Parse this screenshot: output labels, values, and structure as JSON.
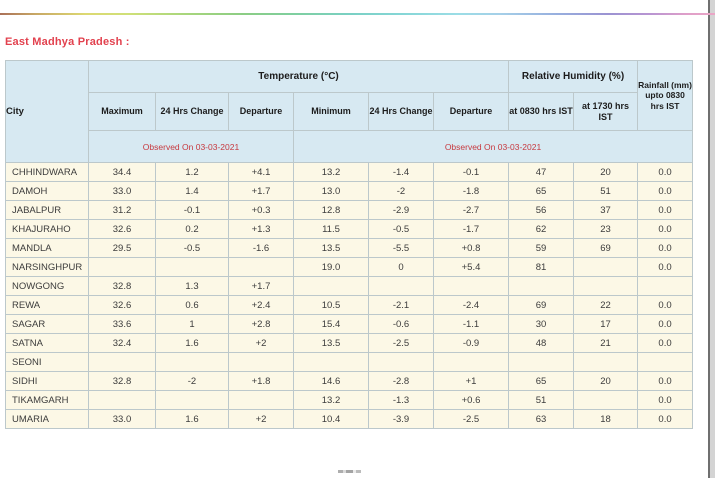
{
  "page": {
    "title": "East Madhya Pradesh :"
  },
  "table": {
    "col_headers": {
      "city": "City",
      "temperature_group": "Temperature (°C)",
      "humidity_group": "Relative Humidity (%)",
      "rainfall": "Rainfall (mm) upto 0830 hrs IST",
      "max": "Maximum",
      "max_change": "24 Hrs Change",
      "max_departure": "Departure",
      "min": "Minimum",
      "min_change": "24 Hrs Change",
      "min_departure": "Departure",
      "rh_0830": "at 0830 hrs IST",
      "rh_1730": "at 1730 hrs IST",
      "observed_temp_max": "Observed On 03-03-2021",
      "observed_temp_min": "Observed On 03-03-2021"
    },
    "rows": [
      {
        "city": "CHHINDWARA",
        "values": [
          "34.4",
          "1.2",
          "+4.1",
          "13.2",
          "-1.4",
          "-0.1",
          "47",
          "20",
          "0.0"
        ]
      },
      {
        "city": "DAMOH",
        "values": [
          "33.0",
          "1.4",
          "+1.7",
          "13.0",
          "-2",
          "-1.8",
          "65",
          "51",
          "0.0"
        ]
      },
      {
        "city": "JABALPUR",
        "values": [
          "31.2",
          "-0.1",
          "+0.3",
          "12.8",
          "-2.9",
          "-2.7",
          "56",
          "37",
          "0.0"
        ]
      },
      {
        "city": "KHAJURAHO",
        "values": [
          "32.6",
          "0.2",
          "+1.3",
          "11.5",
          "-0.5",
          "-1.7",
          "62",
          "23",
          "0.0"
        ]
      },
      {
        "city": "MANDLA",
        "values": [
          "29.5",
          "-0.5",
          "-1.6",
          "13.5",
          "-5.5",
          "+0.8",
          "59",
          "69",
          "0.0"
        ]
      },
      {
        "city": "NARSINGHPUR",
        "values": [
          "",
          "",
          "",
          "19.0",
          "0",
          "+5.4",
          "81",
          "",
          "0.0"
        ]
      },
      {
        "city": "NOWGONG",
        "values": [
          "32.8",
          "1.3",
          "+1.7",
          "",
          "",
          "",
          "",
          "",
          ""
        ]
      },
      {
        "city": "REWA",
        "values": [
          "32.6",
          "0.6",
          "+2.4",
          "10.5",
          "-2.1",
          "-2.4",
          "69",
          "22",
          "0.0"
        ]
      },
      {
        "city": "SAGAR",
        "values": [
          "33.6",
          "1",
          "+2.8",
          "15.4",
          "-0.6",
          "-1.1",
          "30",
          "17",
          "0.0"
        ]
      },
      {
        "city": "SATNA",
        "values": [
          "32.4",
          "1.6",
          "+2",
          "13.5",
          "-2.5",
          "-0.9",
          "48",
          "21",
          "0.0"
        ]
      },
      {
        "city": "SEONI",
        "values": [
          "",
          "",
          "",
          "",
          "",
          "",
          "",
          "",
          ""
        ]
      },
      {
        "city": "SIDHI",
        "values": [
          "32.8",
          "-2",
          "+1.8",
          "14.6",
          "-2.8",
          "+1",
          "65",
          "20",
          "0.0"
        ]
      },
      {
        "city": "TIKAMGARH",
        "values": [
          "",
          "",
          "",
          "13.2",
          "-1.3",
          "+0.6",
          "51",
          "",
          "0.0"
        ]
      },
      {
        "city": "UMARIA",
        "values": [
          "33.0",
          "1.6",
          "+2",
          "10.4",
          "-3.9",
          "-2.5",
          "63",
          "18",
          "0.0"
        ]
      }
    ]
  },
  "colors": {
    "header_bg": "#d7e9f2",
    "row_bg": "#fcf8e6",
    "title_red": "#e2414e",
    "observed_red": "#c7393f",
    "cell_border": "#bcc8cb"
  }
}
